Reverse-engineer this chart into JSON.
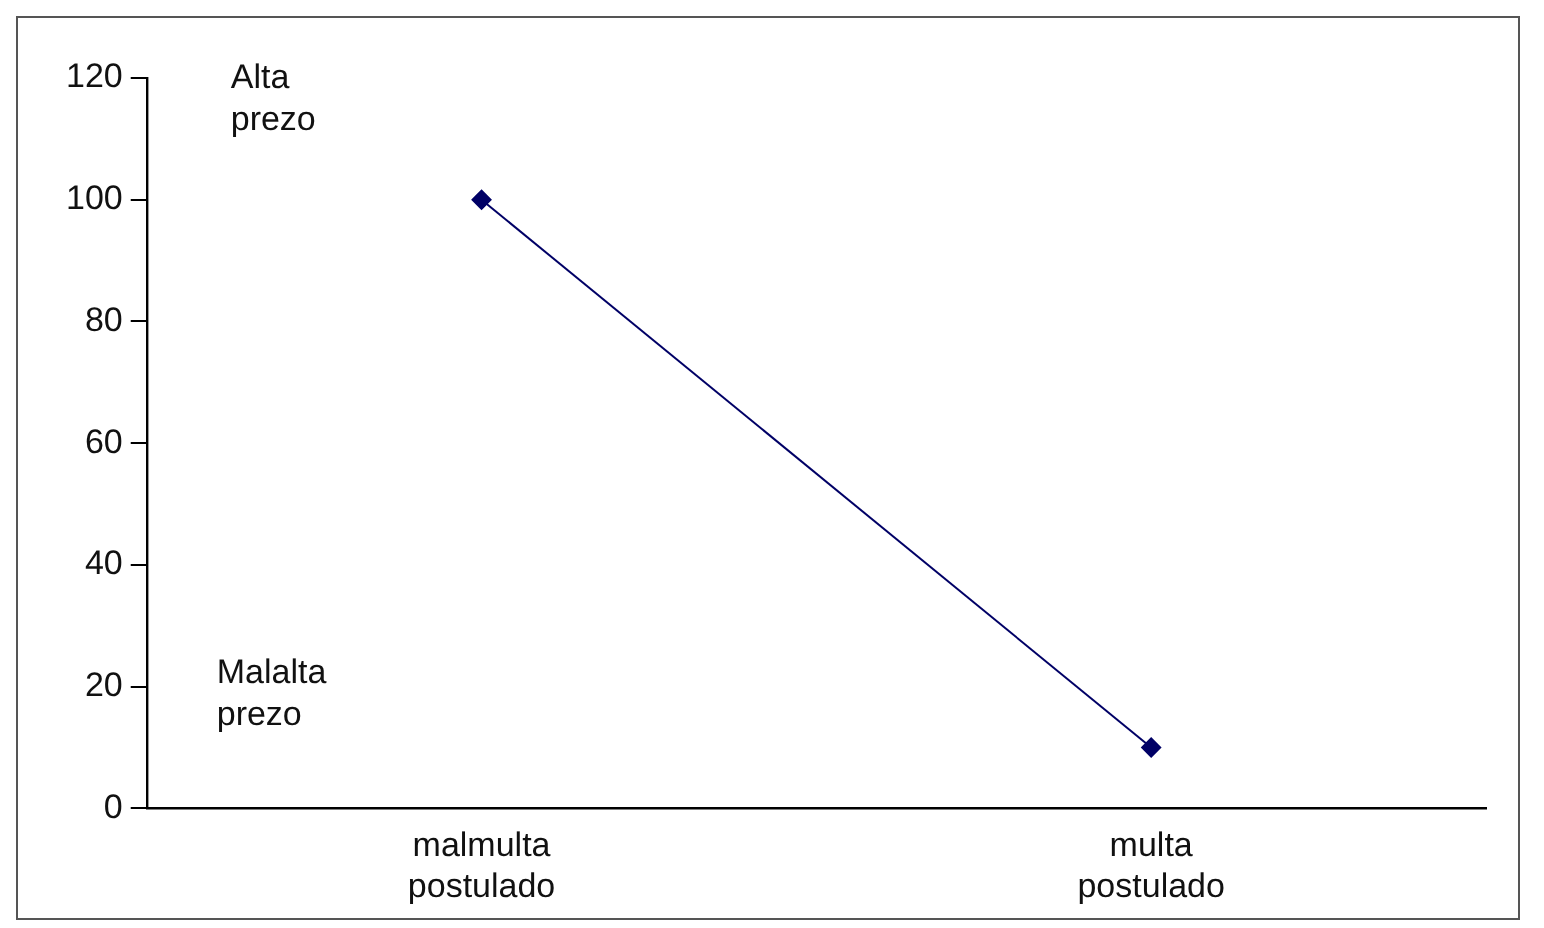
{
  "chart_data": {
    "type": "line",
    "categories": [
      "malmulta postulado",
      "multa postulado"
    ],
    "series": [
      {
        "color": "#000066",
        "values": [
          100,
          10
        ]
      }
    ],
    "ylim": [
      0,
      120
    ],
    "yticks": [
      0,
      20,
      40,
      60,
      80,
      100,
      120
    ],
    "grid": false,
    "legend": false,
    "marker": "diamond",
    "line_style": "solid",
    "annotations": [
      "Alta prezo",
      "Malalta prezo"
    ]
  }
}
